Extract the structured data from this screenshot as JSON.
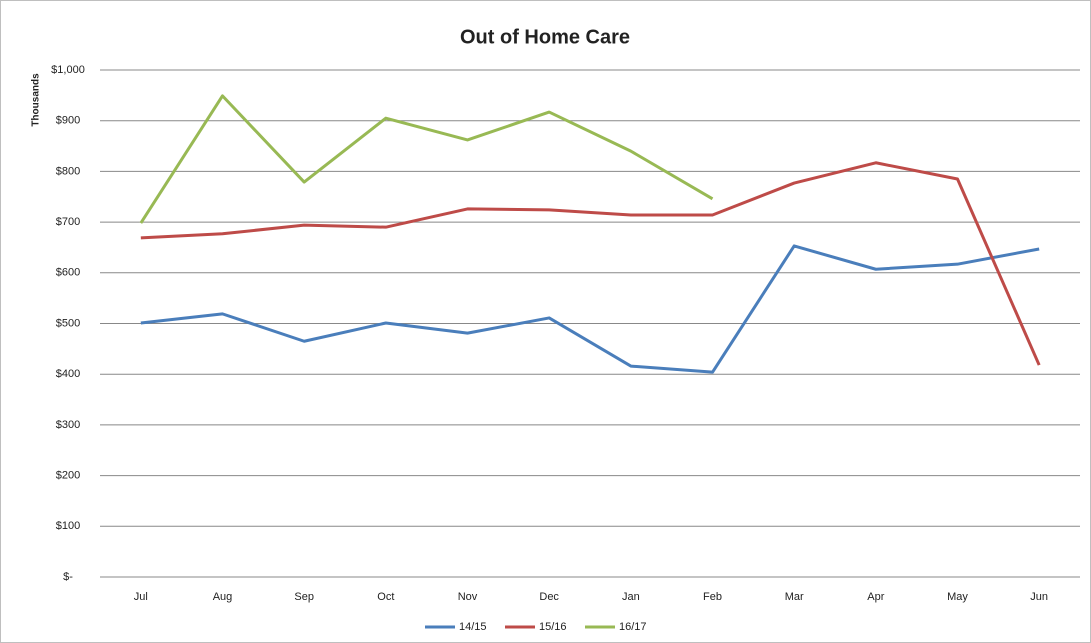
{
  "chart_data": {
    "type": "line",
    "title": "Out of Home Care",
    "y_label": "Thousands",
    "categories": [
      "Jul",
      "Aug",
      "Sep",
      "Oct",
      "Nov",
      "Dec",
      "Jan",
      "Feb",
      "Mar",
      "Apr",
      "May",
      "Jun"
    ],
    "series": [
      {
        "name": "14/15",
        "color": "#4a7ebb",
        "values": [
          501,
          519,
          465,
          501,
          481,
          511,
          416,
          404,
          653,
          607,
          617,
          647
        ]
      },
      {
        "name": "15/16",
        "color": "#be4b48",
        "values": [
          669,
          677,
          694,
          690,
          726,
          724,
          714,
          714,
          777,
          817,
          785,
          418
        ]
      },
      {
        "name": "16/17",
        "color": "#98b954",
        "values": [
          698,
          949,
          779,
          905,
          862,
          917,
          840,
          746,
          null,
          null,
          null,
          null
        ]
      }
    ],
    "ylim": [
      0,
      1000
    ],
    "yticks": [
      {
        "value": 0,
        "label": "$-"
      },
      {
        "value": 100,
        "label": "$100"
      },
      {
        "value": 200,
        "label": "$200"
      },
      {
        "value": 300,
        "label": "$300"
      },
      {
        "value": 400,
        "label": "$400"
      },
      {
        "value": 500,
        "label": "$500"
      },
      {
        "value": 600,
        "label": "$600"
      },
      {
        "value": 700,
        "label": "$700"
      },
      {
        "value": 800,
        "label": "$800"
      },
      {
        "value": 900,
        "label": "$900"
      },
      {
        "value": 1000,
        "label": "$1,000"
      }
    ],
    "grid": true,
    "legend": "bottom"
  }
}
